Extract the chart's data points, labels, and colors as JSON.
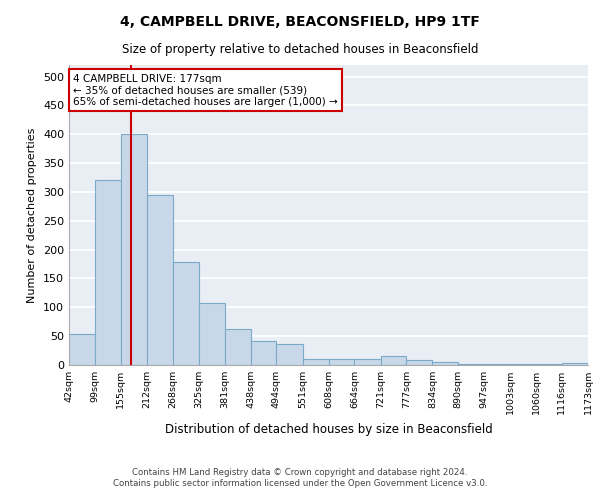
{
  "title1": "4, CAMPBELL DRIVE, BEACONSFIELD, HP9 1TF",
  "title2": "Size of property relative to detached houses in Beaconsfield",
  "xlabel": "Distribution of detached houses by size in Beaconsfield",
  "ylabel": "Number of detached properties",
  "footer1": "Contains HM Land Registry data © Crown copyright and database right 2024.",
  "footer2": "Contains public sector information licensed under the Open Government Licence v3.0.",
  "annotation_line1": "4 CAMPBELL DRIVE: 177sqm",
  "annotation_line2": "← 35% of detached houses are smaller (539)",
  "annotation_line3": "65% of semi-detached houses are larger (1,000) →",
  "property_size": 177,
  "bin_edges": [
    42,
    99,
    155,
    212,
    268,
    325,
    381,
    438,
    494,
    551,
    608,
    664,
    721,
    777,
    834,
    890,
    947,
    1003,
    1060,
    1116,
    1173
  ],
  "bin_labels": [
    "42sqm",
    "99sqm",
    "155sqm",
    "212sqm",
    "268sqm",
    "325sqm",
    "381sqm",
    "438sqm",
    "494sqm",
    "551sqm",
    "608sqm",
    "664sqm",
    "721sqm",
    "777sqm",
    "834sqm",
    "890sqm",
    "947sqm",
    "1003sqm",
    "1060sqm",
    "1116sqm",
    "1173sqm"
  ],
  "bar_heights": [
    53,
    320,
    400,
    295,
    178,
    108,
    63,
    41,
    37,
    11,
    11,
    11,
    15,
    9,
    5,
    2,
    1,
    1,
    1,
    4
  ],
  "bar_color": "#c8d8e8",
  "bar_edge_color": "#7aaac8",
  "vline_color": "#cc0000",
  "vline_x": 177,
  "annotation_box_edge": "#cc0000",
  "annotation_box_face": "#ffffff",
  "bg_color": "#e8eef4",
  "grid_color": "#ffffff",
  "ylim": [
    0,
    520
  ],
  "yticks": [
    0,
    50,
    100,
    150,
    200,
    250,
    300,
    350,
    400,
    450,
    500
  ]
}
